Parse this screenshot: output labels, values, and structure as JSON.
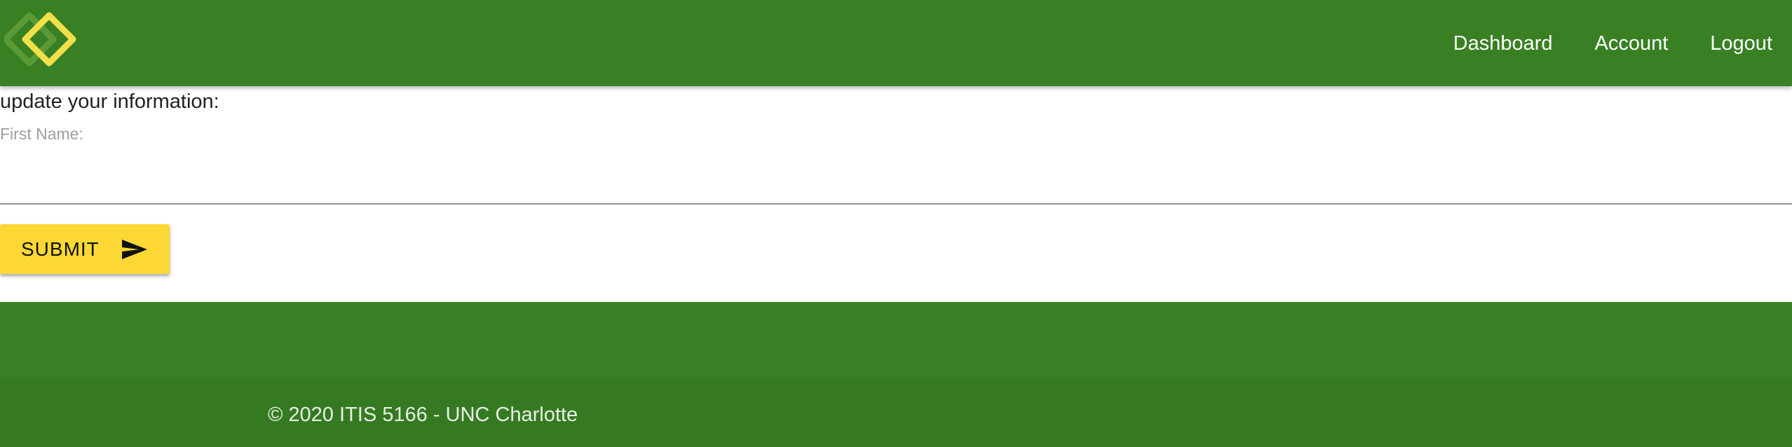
{
  "nav": {
    "logo_icon": "diamond-links-logo",
    "links": [
      {
        "label": "Dashboard"
      },
      {
        "label": "Account"
      },
      {
        "label": "Logout"
      }
    ]
  },
  "form": {
    "heading": "update your information:",
    "first_name": {
      "label": "First Name:",
      "value": ""
    },
    "submit": {
      "label": "SUBMIT",
      "icon": "send-icon"
    }
  },
  "footer": {
    "copyright": "© 2020 ITIS 5166 - UNC Charlotte"
  },
  "colors": {
    "primary_green": "#388023",
    "footer_green": "#357a22",
    "accent_yellow": "#fdd835"
  }
}
